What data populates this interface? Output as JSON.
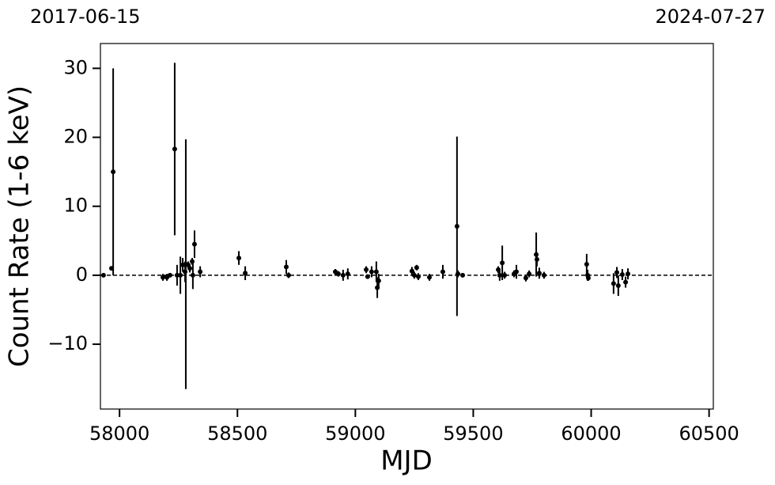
{
  "chart_data": {
    "type": "scatter",
    "xlabel": "MJD",
    "ylabel": "Count Rate (1-6 keV)",
    "x": [
      57932,
      57966,
      57973,
      58184,
      58201,
      58214,
      58234,
      58244,
      58258,
      58268,
      58278,
      58281,
      58291,
      58298,
      58308,
      58311,
      58318,
      58342,
      58506,
      58533,
      58707,
      58717,
      58915,
      58928,
      58948,
      58968,
      59046,
      59052,
      59069,
      59089,
      59093,
      59099,
      59240,
      59250,
      59260,
      59267,
      59314,
      59371,
      59431,
      59435,
      59455,
      59606,
      59612,
      59623,
      59633,
      59673,
      59683,
      59723,
      59737,
      59767,
      59770,
      59780,
      59800,
      59981,
      59985,
      59988,
      60095,
      60109,
      60115,
      60132,
      60146,
      60156
    ],
    "values": [
      0,
      1.0,
      15,
      -0.3,
      -0.3,
      0,
      18.3,
      0,
      0,
      1.5,
      0.5,
      1.6,
      1.5,
      1,
      2,
      0,
      4.5,
      0.5,
      2.5,
      0.3,
      1.2,
      0,
      0.5,
      0.2,
      0,
      0.2,
      0.8,
      -0.2,
      0.5,
      0.5,
      -1.8,
      -0.8,
      0.6,
      0,
      1.1,
      -0.2,
      -0.3,
      0.5,
      7.1,
      0.2,
      0,
      0.8,
      0,
      1.8,
      0,
      0.2,
      0.5,
      -0.4,
      0.2,
      3.0,
      2.3,
      0.3,
      0,
      1.6,
      0,
      -0.4,
      -1.2,
      0.4,
      -1.5,
      0.1,
      -1.0,
      0.2
    ],
    "errors": [
      0,
      0.3,
      15,
      0.5,
      0.5,
      0.3,
      12.5,
      1.5,
      2.7,
      1,
      1.5,
      18.1,
      0.5,
      0.6,
      0.5,
      2,
      2,
      0.8,
      1,
      1,
      1,
      0.4,
      0.4,
      0.4,
      0.8,
      0.8,
      0.5,
      0.3,
      0.8,
      1.5,
      1.5,
      1,
      0.6,
      0.5,
      0.4,
      0.5,
      0.5,
      1,
      13,
      0.5,
      0.3,
      0.5,
      0.8,
      2.5,
      0.5,
      0.5,
      1,
      0.5,
      0.5,
      3.2,
      1,
      0.8,
      0.5,
      1.5,
      0.8,
      0.4,
      1.5,
      0.8,
      1.5,
      0.8,
      0.8,
      0.8
    ],
    "color": "#000000",
    "hline": 0,
    "xlim": [
      57919,
      60518
    ],
    "ylim": [
      -19.4,
      33.6
    ],
    "xticks": [
      58000,
      58500,
      59000,
      59500,
      60000,
      60500
    ],
    "yticks": [
      {
        "value": -10,
        "label": "−10"
      },
      0,
      10,
      20,
      30
    ],
    "x2ticks": [
      {
        "value": 57919,
        "label": "2017-06-15"
      },
      {
        "value": 60518,
        "label": "2024-07-27"
      }
    ]
  }
}
